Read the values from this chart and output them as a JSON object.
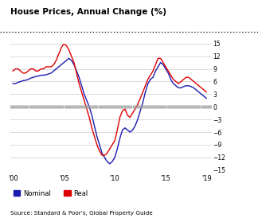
{
  "title": "House Prices, Annual Change (%)",
  "source": "Source: Standard & Poor's, Global Property Guide",
  "nominal_color": "#1a1ab0",
  "real_color": "#dd0000",
  "ylim": [
    -15,
    15
  ],
  "yticks": [
    -15,
    -12,
    -9,
    -6,
    -3,
    0,
    3,
    6,
    9,
    12,
    15
  ],
  "xtick_labels": [
    "'00",
    "'05",
    "'10",
    "'15",
    "'19"
  ],
  "xtick_positions": [
    2000,
    2005,
    2010,
    2015,
    2019
  ],
  "xmin": 1999.75,
  "xmax": 2019.5,
  "nominal_x": [
    2000.0,
    2000.25,
    2000.5,
    2000.75,
    2001.0,
    2001.25,
    2001.5,
    2001.75,
    2002.0,
    2002.25,
    2002.5,
    2002.75,
    2003.0,
    2003.25,
    2003.5,
    2003.75,
    2004.0,
    2004.25,
    2004.5,
    2004.75,
    2005.0,
    2005.25,
    2005.5,
    2005.75,
    2006.0,
    2006.25,
    2006.5,
    2006.75,
    2007.0,
    2007.25,
    2007.5,
    2007.75,
    2008.0,
    2008.25,
    2008.5,
    2008.75,
    2009.0,
    2009.25,
    2009.5,
    2009.75,
    2010.0,
    2010.25,
    2010.5,
    2010.75,
    2011.0,
    2011.25,
    2011.5,
    2011.75,
    2012.0,
    2012.25,
    2012.5,
    2012.75,
    2013.0,
    2013.25,
    2013.5,
    2013.75,
    2014.0,
    2014.25,
    2014.5,
    2014.75,
    2015.0,
    2015.25,
    2015.5,
    2015.75,
    2016.0,
    2016.25,
    2016.5,
    2016.75,
    2017.0,
    2017.25,
    2017.5,
    2017.75,
    2018.0,
    2018.25,
    2018.5,
    2018.75,
    2019.0
  ],
  "nominal_y": [
    5.5,
    5.5,
    5.8,
    6.0,
    6.2,
    6.3,
    6.5,
    6.8,
    7.0,
    7.2,
    7.3,
    7.5,
    7.5,
    7.6,
    7.8,
    8.0,
    8.5,
    9.0,
    9.5,
    10.0,
    10.5,
    11.0,
    11.5,
    11.0,
    10.0,
    8.5,
    7.0,
    5.0,
    3.0,
    1.5,
    0.0,
    -2.0,
    -4.5,
    -7.0,
    -9.0,
    -11.0,
    -12.0,
    -13.0,
    -13.5,
    -13.0,
    -12.0,
    -10.0,
    -7.5,
    -5.5,
    -5.0,
    -5.5,
    -6.0,
    -5.5,
    -4.5,
    -3.0,
    -1.0,
    1.0,
    3.5,
    5.5,
    6.5,
    7.0,
    8.5,
    9.5,
    10.5,
    10.0,
    9.0,
    8.0,
    6.5,
    5.5,
    5.0,
    4.5,
    4.5,
    4.8,
    5.0,
    5.0,
    4.8,
    4.5,
    4.0,
    3.5,
    3.0,
    2.5,
    2.0
  ],
  "real_x": [
    2000.0,
    2000.25,
    2000.5,
    2000.75,
    2001.0,
    2001.25,
    2001.5,
    2001.75,
    2002.0,
    2002.25,
    2002.5,
    2002.75,
    2003.0,
    2003.25,
    2003.5,
    2003.75,
    2004.0,
    2004.25,
    2004.5,
    2004.75,
    2005.0,
    2005.25,
    2005.5,
    2005.75,
    2006.0,
    2006.25,
    2006.5,
    2006.75,
    2007.0,
    2007.25,
    2007.5,
    2007.75,
    2008.0,
    2008.25,
    2008.5,
    2008.75,
    2009.0,
    2009.25,
    2009.5,
    2009.75,
    2010.0,
    2010.25,
    2010.5,
    2010.75,
    2011.0,
    2011.25,
    2011.5,
    2011.75,
    2012.0,
    2012.25,
    2012.5,
    2012.75,
    2013.0,
    2013.25,
    2013.5,
    2013.75,
    2014.0,
    2014.25,
    2014.5,
    2014.75,
    2015.0,
    2015.25,
    2015.5,
    2015.75,
    2016.0,
    2016.25,
    2016.5,
    2016.75,
    2017.0,
    2017.25,
    2017.5,
    2017.75,
    2018.0,
    2018.25,
    2018.5,
    2018.75,
    2019.0
  ],
  "real_y": [
    8.5,
    9.0,
    9.0,
    8.5,
    8.0,
    8.0,
    8.5,
    9.0,
    9.0,
    8.5,
    8.5,
    9.0,
    9.0,
    9.5,
    9.5,
    9.5,
    10.0,
    11.0,
    12.5,
    14.0,
    15.0,
    14.5,
    13.5,
    12.0,
    10.5,
    8.0,
    5.5,
    3.5,
    1.5,
    -0.5,
    -2.5,
    -5.0,
    -7.0,
    -9.0,
    -10.5,
    -11.5,
    -11.5,
    -11.0,
    -10.0,
    -9.0,
    -8.0,
    -5.5,
    -2.5,
    -1.0,
    -0.5,
    -2.0,
    -2.5,
    -1.5,
    -0.5,
    0.5,
    2.0,
    3.5,
    5.0,
    6.5,
    7.5,
    8.5,
    10.0,
    11.5,
    11.5,
    10.5,
    9.5,
    8.5,
    7.5,
    6.5,
    6.0,
    5.5,
    6.0,
    6.5,
    7.0,
    7.0,
    6.5,
    6.0,
    5.5,
    5.0,
    4.5,
    4.0,
    3.5
  ]
}
